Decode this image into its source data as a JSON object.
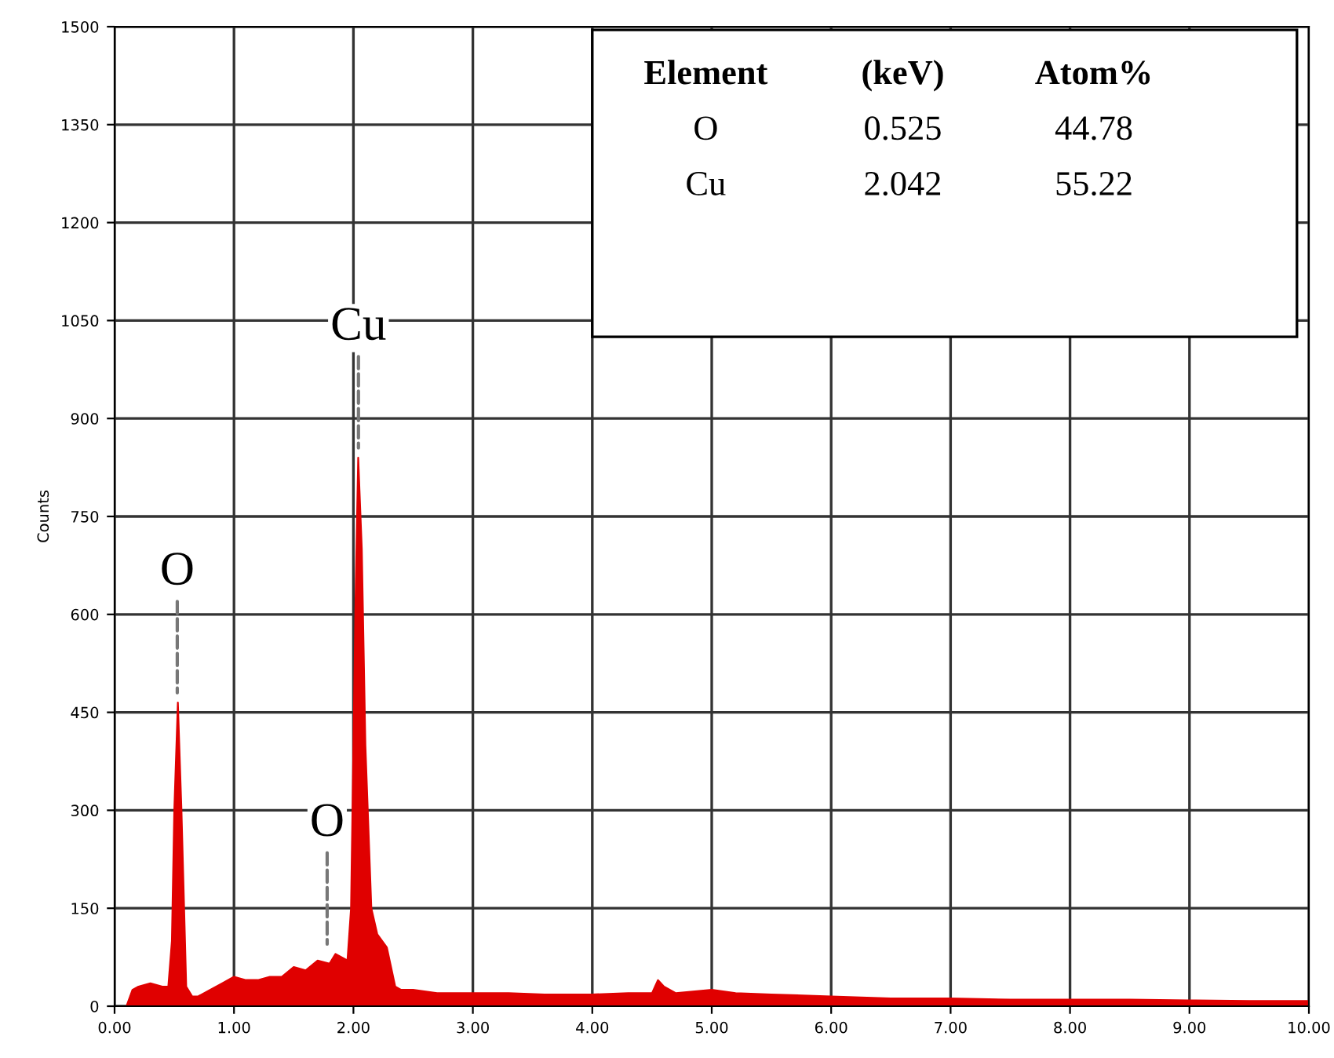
{
  "chart_data": {
    "type": "area",
    "ylabel": "Counts",
    "x": [
      0.1,
      0.15,
      0.2,
      0.3,
      0.4,
      0.45,
      0.48,
      0.5,
      0.53,
      0.56,
      0.6,
      0.65,
      0.7,
      0.8,
      0.9,
      1.0,
      1.1,
      1.2,
      1.3,
      1.4,
      1.5,
      1.6,
      1.7,
      1.8,
      1.85,
      1.95,
      1.98,
      2.0,
      2.02,
      2.04,
      2.07,
      2.1,
      2.15,
      2.2,
      2.28,
      2.35,
      2.4,
      2.5,
      2.7,
      3.0,
      3.3,
      3.6,
      4.0,
      4.3,
      4.5,
      4.55,
      4.6,
      4.7,
      5.0,
      5.2,
      5.5,
      6.0,
      6.5,
      7.0,
      7.5,
      8.0,
      8.5,
      9.0,
      9.5,
      10.0
    ],
    "series": [
      {
        "color": "#e00000",
        "values": [
          0,
          25,
          30,
          35,
          30,
          30,
          100,
          300,
          465,
          300,
          30,
          15,
          15,
          25,
          35,
          45,
          40,
          40,
          45,
          45,
          60,
          55,
          70,
          65,
          80,
          70,
          150,
          400,
          650,
          840,
          700,
          400,
          150,
          110,
          90,
          30,
          25,
          25,
          20,
          20,
          20,
          18,
          18,
          20,
          20,
          40,
          30,
          20,
          25,
          20,
          18,
          15,
          12,
          12,
          10,
          10,
          10,
          9,
          8,
          8
        ]
      }
    ],
    "xlim": [
      0,
      10
    ],
    "xticks": [
      {
        "value": 0,
        "label": "0.00"
      },
      {
        "value": 1,
        "label": "1.00"
      },
      {
        "value": 2,
        "label": "2.00"
      },
      {
        "value": 3,
        "label": "3.00"
      },
      {
        "value": 4,
        "label": "4.00"
      },
      {
        "value": 5,
        "label": "5.00"
      },
      {
        "value": 6,
        "label": "6.00"
      },
      {
        "value": 7,
        "label": "7.00"
      },
      {
        "value": 8,
        "label": "8.00"
      },
      {
        "value": 9,
        "label": "9.00"
      },
      {
        "value": 10,
        "label": "10.00"
      }
    ],
    "ylim": [
      0,
      1500
    ],
    "yticks": [
      0,
      150,
      300,
      450,
      600,
      750,
      900,
      1050,
      1200,
      1350,
      1500
    ],
    "grid": true,
    "annotations": [
      {
        "text": "O",
        "x": 0.525,
        "y": 465
      },
      {
        "text": "Cu",
        "x": 2.042,
        "y": 840
      },
      {
        "text": "O",
        "x": 1.78,
        "y": 80
      },
      "Element",
      "(keV)",
      "Atom%",
      "O",
      "0.525",
      "44.78",
      "Cu",
      "2.042",
      "55.22"
    ]
  }
}
